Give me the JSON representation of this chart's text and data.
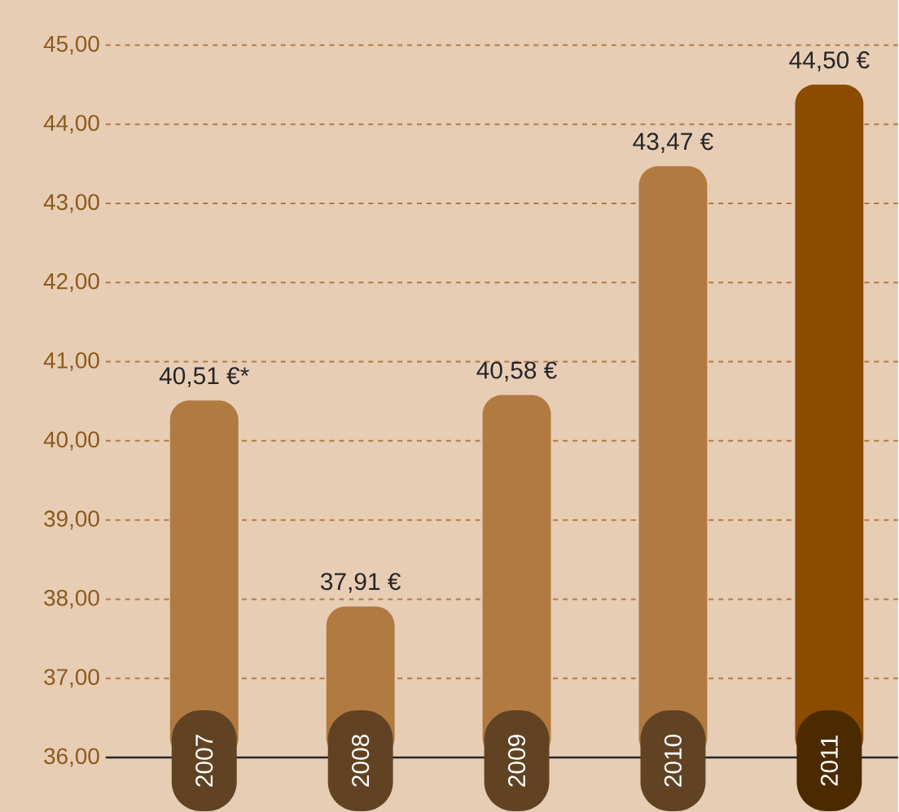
{
  "chart_data": {
    "type": "bar",
    "categories": [
      "2007",
      "2008",
      "2009",
      "2010",
      "2011"
    ],
    "values": [
      40.51,
      37.91,
      40.58,
      43.47,
      44.5
    ],
    "colors": [
      "#b07a40",
      "#b07a40",
      "#b07a40",
      "#b07a40",
      "#8b4c00"
    ],
    "value_labels": [
      "40,51 €*",
      "37,91 €",
      "40,58 €",
      "43,47 €",
      "44,50 €"
    ],
    "ylim": [
      36,
      45.55
    ],
    "yticks": [
      {
        "value": 36,
        "label": "36,00"
      },
      {
        "value": 37,
        "label": "37,00"
      },
      {
        "value": 38,
        "label": "38,00"
      },
      {
        "value": 39,
        "label": "39,00"
      },
      {
        "value": 40,
        "label": "40,00"
      },
      {
        "value": 41,
        "label": "41,00"
      },
      {
        "value": 42,
        "label": "42,00"
      },
      {
        "value": 43,
        "label": "43,00"
      },
      {
        "value": 44,
        "label": "44,00"
      },
      {
        "value": 45,
        "label": "45,00"
      }
    ],
    "grid": "y"
  }
}
